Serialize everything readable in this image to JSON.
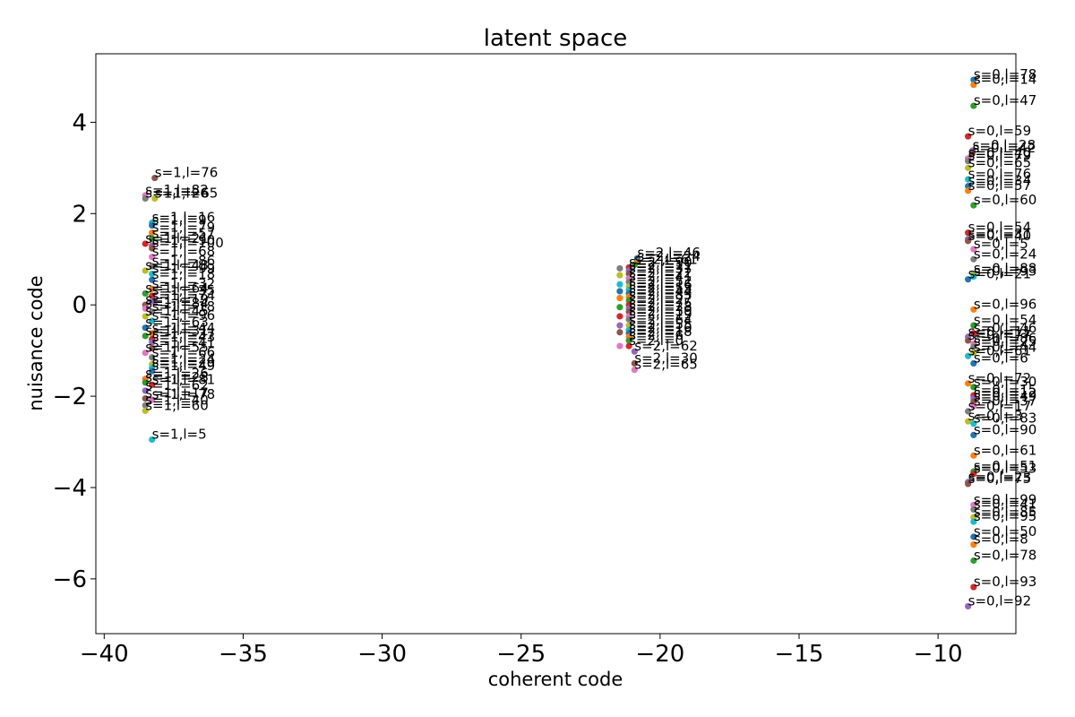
{
  "chart_data": {
    "type": "scatter",
    "title": "latent space",
    "xlabel": "coherent code",
    "ylabel": "nuisance code",
    "xlim": [
      -40.3,
      -7.2
    ],
    "ylim": [
      -7.2,
      5.5
    ],
    "xticks": [
      -40,
      -35,
      -30,
      -25,
      -20,
      -15,
      -10
    ],
    "yticks": [
      -6,
      -4,
      -2,
      0,
      2,
      4
    ],
    "grid": false,
    "colors": [
      "#1f77b4",
      "#ff7f0e",
      "#2ca02c",
      "#d62728",
      "#9467bd",
      "#8c564b",
      "#e377c2",
      "#7f7f7f",
      "#bcbd22",
      "#17becf"
    ],
    "points": [
      {
        "x": -8.72,
        "y": 4.93,
        "label": "s=0,l=78"
      },
      {
        "x": -8.72,
        "y": 4.82,
        "label": "s=0,l=14"
      },
      {
        "x": -8.72,
        "y": 4.36,
        "label": "s=0,l=47"
      },
      {
        "x": -8.92,
        "y": 3.69,
        "label": "s=0,l=59"
      },
      {
        "x": -8.76,
        "y": 3.38,
        "label": "s=0,l=28"
      },
      {
        "x": -8.76,
        "y": 3.32,
        "label": "s=0,l=42"
      },
      {
        "x": -8.92,
        "y": 3.21,
        "label": "s=0,l=40"
      },
      {
        "x": -8.92,
        "y": 3.15,
        "label": "s=0,l=79"
      },
      {
        "x": -8.92,
        "y": 3.0,
        "label": "s=0,l=65"
      },
      {
        "x": -8.92,
        "y": 2.75,
        "label": "s=0,l=76"
      },
      {
        "x": -8.92,
        "y": 2.6,
        "label": "s=0,l=34"
      },
      {
        "x": -8.92,
        "y": 2.5,
        "label": "s=0,l=57"
      },
      {
        "x": -8.72,
        "y": 2.18,
        "label": "s=0,l=60"
      },
      {
        "x": -8.92,
        "y": 1.58,
        "label": "s=0,l=54"
      },
      {
        "x": -8.92,
        "y": 1.44,
        "label": "s=0,l=31"
      },
      {
        "x": -8.92,
        "y": 1.4,
        "label": "s=0,l=40"
      },
      {
        "x": -8.72,
        "y": 1.22,
        "label": "s=0,l=5"
      },
      {
        "x": -8.72,
        "y": 1.0,
        "label": "s=0,l=24"
      },
      {
        "x": -8.72,
        "y": 0.68,
        "label": "s=0,l=88"
      },
      {
        "x": -8.72,
        "y": 0.62,
        "label": "s=0,l=93"
      },
      {
        "x": -8.92,
        "y": 0.56,
        "label": "s=0,l=21"
      },
      {
        "x": -8.72,
        "y": -0.1,
        "label": "s=0,l=96"
      },
      {
        "x": -8.72,
        "y": -0.45,
        "label": "s=0,l=54"
      },
      {
        "x": -8.72,
        "y": -0.62,
        "label": "s=0,l=46"
      },
      {
        "x": -8.92,
        "y": -0.7,
        "label": "s=0,l=11"
      },
      {
        "x": -8.92,
        "y": -0.78,
        "label": "s=0,l=77"
      },
      {
        "x": -8.72,
        "y": -0.85,
        "label": "s=0,l=86"
      },
      {
        "x": -8.72,
        "y": -0.92,
        "label": "s=0,l=25"
      },
      {
        "x": -8.72,
        "y": -1.05,
        "label": "s=0,l=44"
      },
      {
        "x": -8.92,
        "y": -1.12,
        "label": "s=0,l=61"
      },
      {
        "x": -8.72,
        "y": -1.28,
        "label": "s=0,l=6"
      },
      {
        "x": -8.92,
        "y": -1.72,
        "label": "s=0,l=72"
      },
      {
        "x": -8.72,
        "y": -1.8,
        "label": "s=0,l=30"
      },
      {
        "x": -8.72,
        "y": -1.98,
        "label": "s=0,l=15"
      },
      {
        "x": -8.72,
        "y": -2.05,
        "label": "s=0,l=12"
      },
      {
        "x": -8.72,
        "y": -2.12,
        "label": "s=0,l=49"
      },
      {
        "x": -8.72,
        "y": -2.22,
        "label": "s=0,l=37"
      },
      {
        "x": -8.92,
        "y": -2.33,
        "label": "s=0,l=17"
      },
      {
        "x": -8.92,
        "y": -2.55,
        "label": "s=0,l=3"
      },
      {
        "x": -8.72,
        "y": -2.6,
        "label": "s=0,l=83"
      },
      {
        "x": -8.72,
        "y": -2.85,
        "label": "s=0,l=90"
      },
      {
        "x": -8.72,
        "y": -3.3,
        "label": "s=0,l=61"
      },
      {
        "x": -8.72,
        "y": -3.65,
        "label": "s=0,l=51"
      },
      {
        "x": -8.72,
        "y": -3.7,
        "label": "s=0,l=53"
      },
      {
        "x": -8.92,
        "y": -3.88,
        "label": "s=0,l=23"
      },
      {
        "x": -8.92,
        "y": -3.92,
        "label": "s=0,l=75"
      },
      {
        "x": -8.72,
        "y": -4.38,
        "label": "s=0,l=99"
      },
      {
        "x": -8.72,
        "y": -4.48,
        "label": "s=0,l=41"
      },
      {
        "x": -8.72,
        "y": -4.65,
        "label": "s=0,l=85"
      },
      {
        "x": -8.72,
        "y": -4.75,
        "label": "s=0,l=95"
      },
      {
        "x": -8.72,
        "y": -5.08,
        "label": "s=0,l=50"
      },
      {
        "x": -8.72,
        "y": -5.25,
        "label": "s=0,l=8"
      },
      {
        "x": -8.72,
        "y": -5.6,
        "label": "s=0,l=78"
      },
      {
        "x": -8.72,
        "y": -6.18,
        "label": "s=0,l=93"
      },
      {
        "x": -8.92,
        "y": -6.6,
        "label": "s=0,l=92"
      },
      {
        "x": -38.18,
        "y": 2.78,
        "label": "s=1,l=76"
      },
      {
        "x": -38.52,
        "y": 2.4,
        "label": "s=1,l=82"
      },
      {
        "x": -38.52,
        "y": 2.33,
        "label": "s=1,l=26"
      },
      {
        "x": -38.18,
        "y": 2.33,
        "label": "s=1,l=65"
      },
      {
        "x": -38.28,
        "y": 1.8,
        "label": "s=1,l=16"
      },
      {
        "x": -38.28,
        "y": 1.74,
        "label": "s=1,l=9"
      },
      {
        "x": -38.28,
        "y": 1.58,
        "label": "s=1,l=79"
      },
      {
        "x": -38.28,
        "y": 1.45,
        "label": "s=1,l=57"
      },
      {
        "x": -38.52,
        "y": 1.34,
        "label": "s=1,l=21"
      },
      {
        "x": -38.28,
        "y": 1.3,
        "label": "s=1,l=90"
      },
      {
        "x": -38.28,
        "y": 1.24,
        "label": "s=1,l=100"
      },
      {
        "x": -38.28,
        "y": 1.05,
        "label": "s=1,l=68"
      },
      {
        "x": -38.28,
        "y": 0.85,
        "label": "s=1,l=86"
      },
      {
        "x": -38.52,
        "y": 0.75,
        "label": "s=1,l=48"
      },
      {
        "x": -38.28,
        "y": 0.68,
        "label": "s=1,l=99"
      },
      {
        "x": -38.28,
        "y": 0.55,
        "label": "s=1,l=18"
      },
      {
        "x": -38.28,
        "y": 0.35,
        "label": "s=1,l=32"
      },
      {
        "x": -38.52,
        "y": 0.25,
        "label": "s=1,l=64"
      },
      {
        "x": -38.28,
        "y": 0.2,
        "label": "s=1,l=35"
      },
      {
        "x": -38.28,
        "y": 0.08,
        "label": "s=1,l=74"
      },
      {
        "x": -38.52,
        "y": 0.0,
        "label": "s=1,l=19"
      },
      {
        "x": -38.52,
        "y": -0.08,
        "label": "s=1,l=84"
      },
      {
        "x": -38.28,
        "y": -0.15,
        "label": "s=1,l=18"
      },
      {
        "x": -38.52,
        "y": -0.25,
        "label": "s=1,l=45"
      },
      {
        "x": -38.28,
        "y": -0.35,
        "label": "s=1,l=96"
      },
      {
        "x": -38.52,
        "y": -0.5,
        "label": "s=1,l=63"
      },
      {
        "x": -38.28,
        "y": -0.62,
        "label": "s=1,l=44"
      },
      {
        "x": -38.52,
        "y": -0.68,
        "label": "s=1,l=31"
      },
      {
        "x": -38.28,
        "y": -0.75,
        "label": "s=1,l=37"
      },
      {
        "x": -38.28,
        "y": -0.82,
        "label": "s=1,l=43"
      },
      {
        "x": -38.28,
        "y": -0.95,
        "label": "s=1,l=41"
      },
      {
        "x": -38.52,
        "y": -1.05,
        "label": "s=1,l=55"
      },
      {
        "x": -38.28,
        "y": -1.15,
        "label": "s=1,l=66"
      },
      {
        "x": -38.28,
        "y": -1.3,
        "label": "s=1,l=24"
      },
      {
        "x": -38.28,
        "y": -1.38,
        "label": "s=1,l=29"
      },
      {
        "x": -38.28,
        "y": -1.45,
        "label": "s=1,l=49"
      },
      {
        "x": -38.52,
        "y": -1.62,
        "label": "s=1,l=26"
      },
      {
        "x": -38.52,
        "y": -1.7,
        "label": "s=1,l=28"
      },
      {
        "x": -38.28,
        "y": -1.75,
        "label": "s=1,l=81"
      },
      {
        "x": -38.52,
        "y": -1.88,
        "label": "s=1,l=62"
      },
      {
        "x": -38.52,
        "y": -2.05,
        "label": "s=1,l=17"
      },
      {
        "x": -38.28,
        "y": -2.08,
        "label": "s=1,l=78"
      },
      {
        "x": -38.52,
        "y": -2.2,
        "label": "s=1,l=40"
      },
      {
        "x": -38.52,
        "y": -2.32,
        "label": "s=1,l=60"
      },
      {
        "x": -38.28,
        "y": -2.95,
        "label": "s=1,l=5"
      },
      {
        "x": -20.82,
        "y": 1.02,
        "label": "s=2,l=46"
      },
      {
        "x": -20.82,
        "y": 0.95,
        "label": "s=2,l=24"
      },
      {
        "x": -20.92,
        "y": 0.88,
        "label": "s=2,l=61"
      },
      {
        "x": -21.12,
        "y": 0.82,
        "label": "s=2,l=90"
      },
      {
        "x": -21.12,
        "y": 0.75,
        "label": "s=2,l=11"
      },
      {
        "x": -21.12,
        "y": 0.68,
        "label": "s=2,l=37"
      },
      {
        "x": -21.12,
        "y": 0.58,
        "label": "s=2,l=72"
      },
      {
        "x": -21.12,
        "y": 0.5,
        "label": "s=2,l=41"
      },
      {
        "x": -21.12,
        "y": 0.4,
        "label": "s=2,l=52"
      },
      {
        "x": -21.12,
        "y": 0.33,
        "label": "s=2,l=16"
      },
      {
        "x": -21.12,
        "y": 0.25,
        "label": "s=2,l=53"
      },
      {
        "x": -21.12,
        "y": 0.18,
        "label": "s=2,l=44"
      },
      {
        "x": -21.12,
        "y": 0.1,
        "label": "s=2,l=83"
      },
      {
        "x": -21.12,
        "y": 0.0,
        "label": "s=2,l=27"
      },
      {
        "x": -21.12,
        "y": -0.08,
        "label": "s=2,l=75"
      },
      {
        "x": -21.12,
        "y": -0.15,
        "label": "s=2,l=28"
      },
      {
        "x": -21.12,
        "y": -0.25,
        "label": "s=2,l=39"
      },
      {
        "x": -21.12,
        "y": -0.32,
        "label": "s=2,l=19"
      },
      {
        "x": -21.12,
        "y": -0.45,
        "label": "s=2,l=64"
      },
      {
        "x": -21.12,
        "y": -0.55,
        "label": "s=2,l=55"
      },
      {
        "x": -21.12,
        "y": -0.62,
        "label": "s=2,l=10"
      },
      {
        "x": -21.12,
        "y": -0.7,
        "label": "s=2,l=18"
      },
      {
        "x": -21.12,
        "y": -0.78,
        "label": "s=2,l=6"
      },
      {
        "x": -21.12,
        "y": -0.9,
        "label": "s=2,l=0"
      },
      {
        "x": -20.92,
        "y": -1.02,
        "label": "s=2,l=62"
      },
      {
        "x": -20.92,
        "y": -1.28,
        "label": "s=2,l=30"
      },
      {
        "x": -20.92,
        "y": -1.42,
        "label": "s=2,l=65"
      },
      {
        "x": -21.45,
        "y": 0.8,
        "label": ""
      },
      {
        "x": -21.45,
        "y": 0.65,
        "label": ""
      },
      {
        "x": -21.45,
        "y": 0.45,
        "label": ""
      },
      {
        "x": -21.45,
        "y": 0.3,
        "label": ""
      },
      {
        "x": -21.45,
        "y": 0.15,
        "label": ""
      },
      {
        "x": -21.45,
        "y": -0.05,
        "label": ""
      },
      {
        "x": -21.45,
        "y": -0.25,
        "label": ""
      },
      {
        "x": -21.45,
        "y": -0.45,
        "label": ""
      },
      {
        "x": -21.45,
        "y": -0.6,
        "label": ""
      },
      {
        "x": -21.45,
        "y": -0.9,
        "label": ""
      }
    ]
  }
}
